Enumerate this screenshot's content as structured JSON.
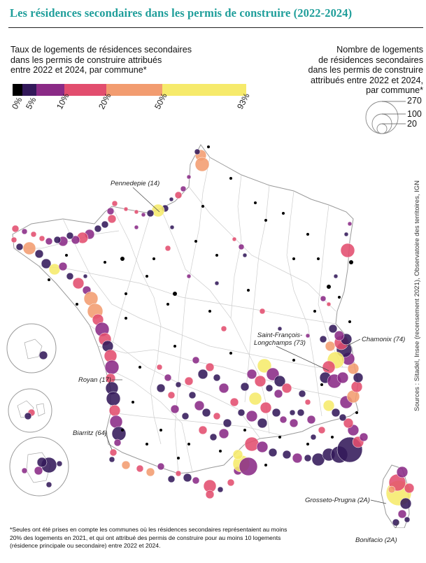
{
  "title": "Les résidences secondaires dans les permis de construire (2022-2024)",
  "legend_color": {
    "title_lines": [
      "Taux de logements de résidences secondaires",
      "dans les permis de construire attribués",
      "entre 2022 et 2024, par commune*"
    ],
    "ticks": [
      "0%",
      "5%",
      "10%",
      "20%",
      "50%",
      "93%"
    ],
    "colors": [
      "#000000",
      "#33195a",
      "#8a2a86",
      "#e24d6e",
      "#f29c70",
      "#f6ea6b"
    ]
  },
  "legend_size": {
    "title_lines": [
      "Nombre de logements",
      "de résidences secondaires",
      "dans les permis de construire",
      "attribués entre 2022 et 2024,",
      "par commune*"
    ],
    "values": [
      "270",
      "100",
      "20"
    ]
  },
  "annotations": {
    "pennedepie": "Pennedepie (14)",
    "saint_francois": "Saint-François-Longchamps (73)",
    "chamonix": "Chamonix (74)",
    "royan": "Royan (17)",
    "biarritz": "Biarritz (64)",
    "grosseto": "Grosseto-Prugna (2A)",
    "bonifacio": "Bonifacio (2A)"
  },
  "sources": "Sources : Sitadel, Insee (recensement 2021), Observatoire des territoires, IGN",
  "footnote": "*Seules ont été prises en compte les communes où les résidences secondaires représentaient au moins 20% des logements en 2021, et qui ont attribué des permis de construire pour au moins 10 logements (résidence principale ou secondaire) entre 2022 et 2024.",
  "map_colors": {
    "border": "#c8c8c8",
    "outline": "#9a9a9a"
  }
}
